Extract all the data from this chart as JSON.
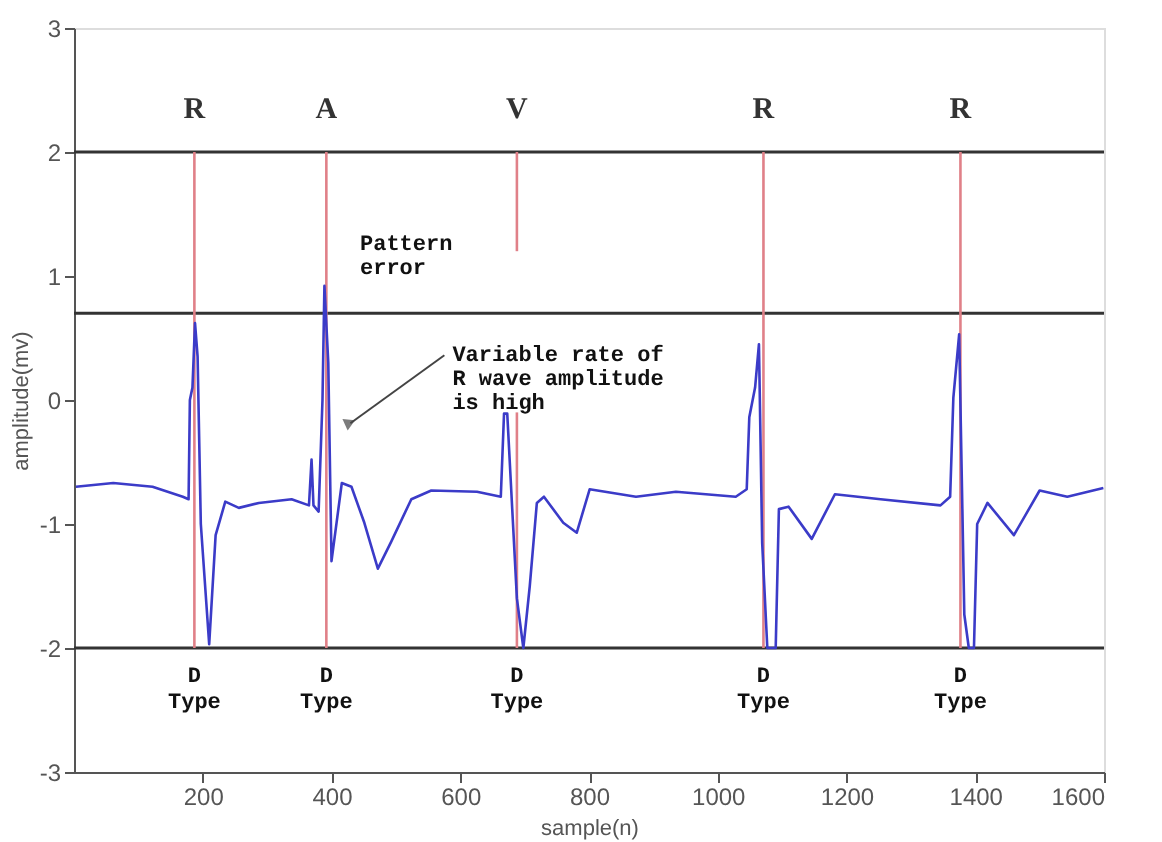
{
  "chart_data": {
    "type": "line",
    "xlabel": "sample(n)",
    "ylabel": "amplitude(mv)",
    "xlim": [
      0,
      1600
    ],
    "ylim": [
      -3,
      3
    ],
    "xticks": [
      200,
      400,
      600,
      800,
      1000,
      1200,
      1400,
      1600
    ],
    "yticks": [
      -3,
      -2,
      -1,
      0,
      1,
      2,
      3
    ],
    "grid": false,
    "marker": "none",
    "line_style": "solid",
    "series": [
      {
        "color": "#e08088",
        "x": [
          187,
          187
        ],
        "values": [
          2,
          -2
        ]
      },
      {
        "color": "#e08088",
        "x": [
          392,
          392
        ],
        "values": [
          2,
          -2
        ]
      },
      {
        "color": "#e08088",
        "x": [
          688,
          688
        ],
        "values": [
          2,
          1.2
        ]
      },
      {
        "color": "#e08088",
        "x": [
          688,
          688
        ],
        "values": [
          -0.1,
          -2
        ]
      },
      {
        "color": "#e08088",
        "x": [
          1071,
          1071
        ],
        "values": [
          2,
          -2
        ]
      },
      {
        "color": "#e08088",
        "x": [
          1377,
          1377
        ],
        "values": [
          2,
          -2
        ]
      },
      {
        "color": "#3b3bc8",
        "x": [
          3,
          61,
          122,
          169,
          178,
          180,
          184,
          188,
          192,
          197,
          210,
          220,
          235,
          256,
          287,
          338,
          365,
          369,
          372,
          380,
          386,
          389,
          395,
          400,
          416,
          431,
          451,
          472,
          493,
          524,
          555,
          626,
          663,
          668,
          673,
          688,
          698,
          708,
          719,
          730,
          760,
          781,
          801,
          873,
          935,
          1028,
          1045,
          1049,
          1058,
          1064,
          1069,
          1077,
          1090,
          1095,
          1110,
          1146,
          1182,
          1253,
          1346,
          1361,
          1366,
          1375,
          1383,
          1390,
          1398,
          1403,
          1419,
          1460,
          1500,
          1543,
          1599
        ],
        "values": [
          -0.7,
          -0.67,
          -0.7,
          -0.78,
          -0.8,
          0.0,
          0.1,
          0.62,
          0.35,
          -1.0,
          -1.97,
          -1.09,
          -0.82,
          -0.87,
          -0.83,
          -0.8,
          -0.85,
          -0.48,
          -0.85,
          -0.9,
          0.0,
          0.92,
          0.3,
          -1.3,
          -0.67,
          -0.7,
          -0.99,
          -1.36,
          -1.14,
          -0.8,
          -0.73,
          -0.74,
          -0.78,
          -0.11,
          -0.11,
          -1.6,
          -2.0,
          -1.5,
          -0.83,
          -0.78,
          -0.99,
          -1.07,
          -0.72,
          -0.78,
          -0.74,
          -0.78,
          -0.72,
          -0.14,
          0.1,
          0.45,
          -1.15,
          -2.0,
          -2.0,
          -0.88,
          -0.86,
          -1.12,
          -0.76,
          -0.8,
          -0.85,
          -0.78,
          0.02,
          0.53,
          -1.73,
          -2.0,
          -2.0,
          -1.0,
          -0.83,
          -1.09,
          -0.73,
          -0.78,
          -0.71
        ]
      }
    ],
    "ref_lines": [
      {
        "axis": "y",
        "value": 2,
        "color": "#333333"
      },
      {
        "axis": "y",
        "value": 0.7,
        "color": "#333333"
      },
      {
        "axis": "y",
        "value": -2,
        "color": "#333333"
      }
    ],
    "annotations": [
      {
        "text": "R",
        "x": 187,
        "y": 2
      },
      {
        "text": "A",
        "x": 392,
        "y": 2
      },
      {
        "text": "V",
        "x": 688,
        "y": 2
      },
      {
        "text": "R",
        "x": 1071,
        "y": 2
      },
      {
        "text": "R",
        "x": 1377,
        "y": 2
      },
      {
        "text": "D\nType",
        "x": 187,
        "y": -2
      },
      {
        "text": "D\nType",
        "x": 392,
        "y": -2
      },
      {
        "text": "D\nType",
        "x": 688,
        "y": -2
      },
      {
        "text": "D\nType",
        "x": 1071,
        "y": -2
      },
      {
        "text": "D\nType",
        "x": 1377,
        "y": -2
      },
      "Pattern\nerror",
      {
        "text": "Variable rate of\nR wave amplitude\nis high",
        "x": 420,
        "y": -0.22
      }
    ]
  }
}
